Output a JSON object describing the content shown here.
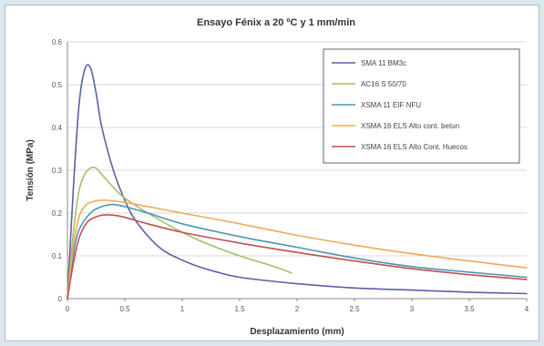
{
  "chart_data": {
    "type": "line",
    "title": "Ensayo Fénix a 20 ºC y 1 mm/min",
    "xlabel": "Desplazamiento (mm)",
    "ylabel": "Tensión (MPa)",
    "xlim": [
      0,
      4
    ],
    "ylim": [
      0,
      0.6
    ],
    "xticks": [
      0,
      0.5,
      1,
      1.5,
      2,
      2.5,
      3,
      3.5,
      4
    ],
    "xtick_labels": [
      "0",
      "0.5",
      "1",
      "1.5",
      "2",
      "2.5",
      "3",
      "3.5",
      "4"
    ],
    "yticks": [
      0,
      0.1,
      0.2,
      0.3,
      0.4,
      0.5,
      0.6
    ],
    "ytick_labels": [
      "0",
      "0.1",
      "0.2",
      "0.3",
      "0.4",
      "0.5",
      "0.6"
    ],
    "grid": "horizontal",
    "legend_position": "top-right",
    "series": [
      {
        "name": "SMA 11 BM3c",
        "color": "#5b5fa8",
        "x": [
          0,
          0.05,
          0.1,
          0.15,
          0.2,
          0.25,
          0.3,
          0.4,
          0.5,
          0.6,
          0.8,
          1.0,
          1.2,
          1.5,
          2.0,
          2.5,
          3.0,
          3.5,
          4.0
        ],
        "y": [
          0,
          0.25,
          0.45,
          0.535,
          0.54,
          0.48,
          0.4,
          0.3,
          0.23,
          0.18,
          0.12,
          0.09,
          0.07,
          0.05,
          0.035,
          0.025,
          0.02,
          0.015,
          0.012
        ]
      },
      {
        "name": "AC16 S 50/70",
        "color": "#a3be6a",
        "x": [
          0,
          0.05,
          0.1,
          0.15,
          0.2,
          0.25,
          0.3,
          0.4,
          0.5,
          0.7,
          1.0,
          1.2,
          1.5,
          1.8,
          1.95
        ],
        "y": [
          0,
          0.15,
          0.25,
          0.29,
          0.305,
          0.305,
          0.29,
          0.26,
          0.235,
          0.2,
          0.155,
          0.13,
          0.1,
          0.075,
          0.06
        ]
      },
      {
        "name": "XSMA 11 EIF NFU",
        "color": "#4d93b4",
        "x": [
          0,
          0.05,
          0.1,
          0.2,
          0.3,
          0.4,
          0.5,
          0.7,
          1.0,
          1.5,
          2.0,
          2.5,
          3.0,
          3.5,
          4.0
        ],
        "y": [
          0,
          0.1,
          0.16,
          0.2,
          0.215,
          0.22,
          0.215,
          0.2,
          0.175,
          0.145,
          0.12,
          0.095,
          0.075,
          0.062,
          0.05
        ]
      },
      {
        "name": "XSMA 16 ELS Alto cont. betun",
        "color": "#f0a95b",
        "x": [
          0,
          0.05,
          0.1,
          0.15,
          0.2,
          0.3,
          0.4,
          0.5,
          0.7,
          1.0,
          1.5,
          2.0,
          2.5,
          3.0,
          3.5,
          4.0
        ],
        "y": [
          0,
          0.12,
          0.19,
          0.215,
          0.225,
          0.23,
          0.228,
          0.225,
          0.215,
          0.2,
          0.175,
          0.148,
          0.125,
          0.105,
          0.088,
          0.072
        ]
      },
      {
        "name": "XSMA 16 ELS Alto Cont. Huecos",
        "color": "#c0504d",
        "x": [
          0,
          0.05,
          0.1,
          0.15,
          0.2,
          0.3,
          0.4,
          0.5,
          0.7,
          1.0,
          1.5,
          2.0,
          2.5,
          3.0,
          3.5,
          4.0
        ],
        "y": [
          0,
          0.08,
          0.14,
          0.17,
          0.185,
          0.195,
          0.195,
          0.19,
          0.175,
          0.155,
          0.13,
          0.108,
          0.088,
          0.07,
          0.056,
          0.045
        ]
      }
    ]
  }
}
